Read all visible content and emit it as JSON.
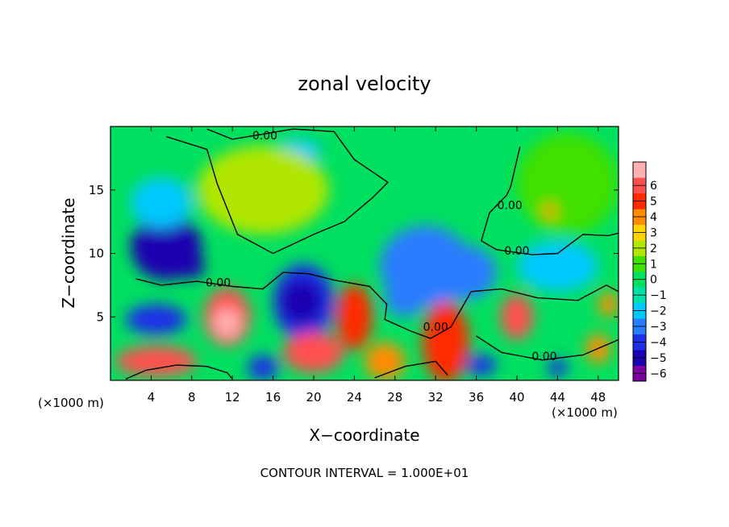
{
  "chart_data": {
    "type": "heatmap",
    "title": "zonal velocity",
    "xlabel": "X−coordinate",
    "ylabel": "Z−coordinate",
    "x_unit_label": "(×1000 m)",
    "x_unit_label_right": "(×1000 m)",
    "footer": "CONTOUR INTERVAL = 1.000E+01",
    "xlim": [
      0,
      50
    ],
    "ylim": [
      0,
      20
    ],
    "x_ticks": [
      4,
      8,
      12,
      16,
      20,
      24,
      28,
      32,
      36,
      40,
      44,
      48
    ],
    "y_ticks": [
      5,
      10,
      15
    ],
    "colorbar": {
      "levels": [
        -6,
        -5,
        -4,
        -3,
        -2,
        -1,
        0,
        1,
        2,
        3,
        4,
        5,
        6
      ],
      "colors": [
        "#7a00a0",
        "#1a00b0",
        "#1e2fe8",
        "#2a7cff",
        "#00c8ff",
        "#00e0a8",
        "#00e060",
        "#40e000",
        "#b0e600",
        "#ffd400",
        "#ff8c00",
        "#ff2a00",
        "#ff5050",
        "#ffb0b0"
      ]
    },
    "contour_labels": [
      {
        "text": "0.00",
        "x": 15.2,
        "y": 19.0
      },
      {
        "text": "0.00",
        "x": 10.6,
        "y": 7.4
      },
      {
        "text": "0.00",
        "x": 39.3,
        "y": 13.5
      },
      {
        "text": "0.00",
        "x": 40.0,
        "y": 9.9
      },
      {
        "text": "0.00",
        "x": 32.0,
        "y": 3.9
      },
      {
        "text": "0.00",
        "x": 42.7,
        "y": 1.6
      }
    ],
    "features": [
      {
        "x": 5.5,
        "y": 10.5,
        "value": -5.5,
        "rx": 3.5,
        "ry": 2.6
      },
      {
        "x": 7.8,
        "y": 9.0,
        "value": -6.0,
        "rx": 1.5,
        "ry": 1.0
      },
      {
        "x": 4.5,
        "y": 4.8,
        "value": -4.5,
        "rx": 3.0,
        "ry": 1.2
      },
      {
        "x": 5.0,
        "y": 14.0,
        "value": -2.8,
        "rx": 3.0,
        "ry": 2.0
      },
      {
        "x": 18.5,
        "y": 18.0,
        "value": -3.0,
        "rx": 2.2,
        "ry": 1.0
      },
      {
        "x": 19.0,
        "y": 6.2,
        "value": -5.0,
        "rx": 3.0,
        "ry": 3.0
      },
      {
        "x": 18.8,
        "y": 6.2,
        "value": -6.0,
        "rx": 2.1,
        "ry": 1.8
      },
      {
        "x": 31.0,
        "y": 9.0,
        "value": -4.0,
        "rx": 4.5,
        "ry": 3.2
      },
      {
        "x": 34.5,
        "y": 8.5,
        "value": -4.0,
        "rx": 3.5,
        "ry": 2.2
      },
      {
        "x": 29.0,
        "y": 6.5,
        "value": -3.5,
        "rx": 2.0,
        "ry": 1.5
      },
      {
        "x": 44.0,
        "y": 9.0,
        "value": -2.5,
        "rx": 4.0,
        "ry": 2.0
      },
      {
        "x": 11.5,
        "y": 5.0,
        "value": 5.5,
        "rx": 2.3,
        "ry": 2.3
      },
      {
        "x": 11.5,
        "y": 4.5,
        "value": 6.0,
        "rx": 1.4,
        "ry": 1.2
      },
      {
        "x": 24.0,
        "y": 5.0,
        "value": 4.5,
        "rx": 1.8,
        "ry": 2.6
      },
      {
        "x": 20.0,
        "y": 2.2,
        "value": 5.5,
        "rx": 3.0,
        "ry": 1.6
      },
      {
        "x": 4.5,
        "y": 1.5,
        "value": 5.5,
        "rx": 4.0,
        "ry": 1.2
      },
      {
        "x": 33.0,
        "y": 3.0,
        "value": 4.5,
        "rx": 2.3,
        "ry": 3.2
      },
      {
        "x": 40.0,
        "y": 5.0,
        "value": 5.5,
        "rx": 1.6,
        "ry": 1.8
      },
      {
        "x": 48.0,
        "y": 2.5,
        "value": 3.5,
        "rx": 1.2,
        "ry": 1.2
      },
      {
        "x": 27.0,
        "y": 1.5,
        "value": 3.0,
        "rx": 2.0,
        "ry": 1.5
      },
      {
        "x": 15.0,
        "y": 1.0,
        "value": -4.5,
        "rx": 1.5,
        "ry": 1.0
      },
      {
        "x": 36.5,
        "y": 1.2,
        "value": -5.0,
        "rx": 1.5,
        "ry": 0.8
      },
      {
        "x": 44.0,
        "y": 1.0,
        "value": -5.0,
        "rx": 1.0,
        "ry": 0.7
      },
      {
        "x": 15.0,
        "y": 15.0,
        "value": 1.3,
        "rx": 6.5,
        "ry": 3.5
      },
      {
        "x": 45.0,
        "y": 15.5,
        "value": 0.8,
        "rx": 5.0,
        "ry": 4.0
      },
      {
        "x": 43.2,
        "y": 13.3,
        "value": 3.0,
        "rx": 0.7,
        "ry": 0.6
      },
      {
        "x": 49.0,
        "y": 6.0,
        "value": 3.0,
        "rx": 1.0,
        "ry": 1.0
      }
    ]
  }
}
